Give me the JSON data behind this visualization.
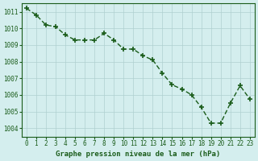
{
  "x": [
    0,
    1,
    2,
    3,
    4,
    5,
    6,
    7,
    8,
    9,
    10,
    11,
    12,
    13,
    14,
    15,
    16,
    17,
    18,
    19,
    20,
    21,
    22,
    23
  ],
  "y": [
    1011.2,
    1010.8,
    1010.2,
    1010.1,
    1009.6,
    1009.3,
    1009.3,
    1009.3,
    1009.7,
    1009.3,
    1008.75,
    1008.75,
    1008.35,
    1008.1,
    1007.3,
    1006.6,
    1006.35,
    1006.0,
    1005.25,
    1004.3,
    1004.3,
    1005.5,
    1006.55,
    1005.75
  ],
  "line_color": "#1a5c1a",
  "marker_color": "#1a5c1a",
  "bg_color": "#d4eeee",
  "grid_color": "#b0d0d0",
  "xlabel": "Graphe pression niveau de la mer (hPa)",
  "xlabel_color": "#1a5c1a",
  "tick_color": "#1a5c1a",
  "ylim": [
    1003.5,
    1011.5
  ],
  "xlim": [
    -0.5,
    23.5
  ],
  "yticks": [
    1004,
    1005,
    1006,
    1007,
    1008,
    1009,
    1010,
    1011
  ],
  "xticks": [
    0,
    1,
    2,
    3,
    4,
    5,
    6,
    7,
    8,
    9,
    10,
    11,
    12,
    13,
    14,
    15,
    16,
    17,
    18,
    19,
    20,
    21,
    22,
    23
  ],
  "figsize": [
    3.2,
    2.0
  ],
  "dpi": 100
}
